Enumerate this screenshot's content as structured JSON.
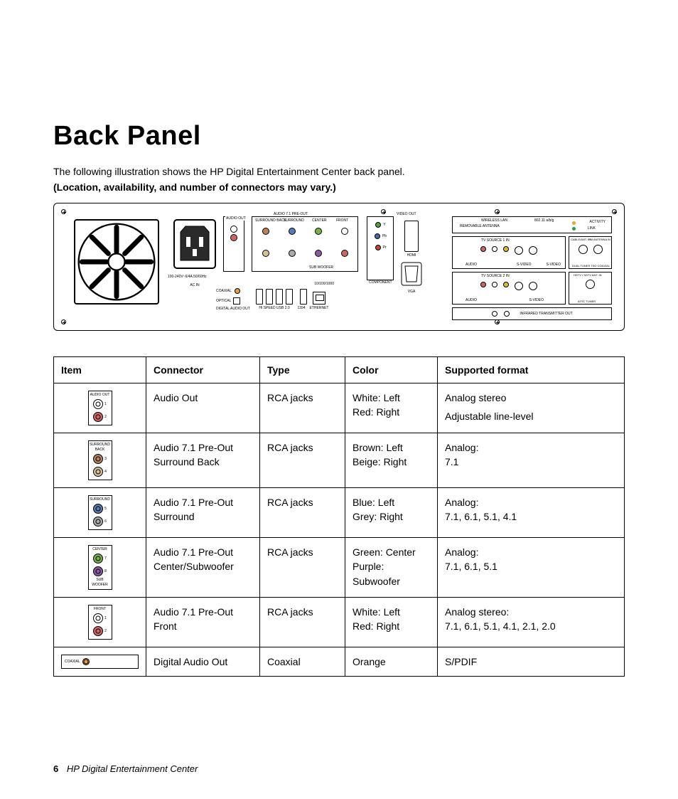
{
  "page": {
    "title": "Back Panel",
    "intro": "The following illustration shows the HP Digital Entertainment Center back panel.",
    "note": "(Location, availability, and number of connectors may vary.)",
    "page_number": "6",
    "footer_title": "HP Digital Entertainment Center"
  },
  "panel_labels": {
    "audio_out": "AUDIO OUT",
    "audio_71_preout": "AUDIO 7.1 PRE-OUT",
    "surround_back": "SURROUND BACK",
    "surround": "SURROUND",
    "center": "CENTER",
    "front": "FRONT",
    "sub_woofer": "SUB WOOFER",
    "ac_in": "AC IN",
    "ac_spec": "100-240V~6/4A  50/60Hz",
    "coaxial": "COAXIAL",
    "optical": "OPTICAL",
    "digital_audio_out": "DIGITAL AUDIO OUT",
    "hi_speed_usb": "HI SPEED USB 2.0",
    "ieee1394": "1394",
    "ethernet": "ETHERNET",
    "ethernet_speed": "10/100/1000",
    "video_out": "VIDEO OUT",
    "component": "COMPONENT",
    "hdmi": "HDMI",
    "vga": "VGA",
    "y": "Y",
    "pb": "Pb",
    "pr": "Pr",
    "wireless_lan": "WIRELESS LAN",
    "wifi_std": "802.11 a/b/g",
    "removable_antenna": "REMOVABLE ANTENNA",
    "activity": "ACTIVITY",
    "link": "LINK",
    "tv_source_1": "TV SOURCE  1   IN",
    "tv_source_2": "TV SOURCE  2  IN",
    "audio": "AUDIO",
    "svideo": "S-VIDEO",
    "cable_ant_in": "CABLE/ANT. IN",
    "fm_antenna_in": "FM ANTENNA IN",
    "dual_tuner": "DUAL TUNER",
    "tso_coaxial": "TSO COAXIAL",
    "hdtv_sdtv": "HDTV / SDTV ANT. IN",
    "atsc_tuner": "ATSC TUNER",
    "ir_out": "INFRARED TRANSMITTER OUT"
  },
  "table": {
    "headers": {
      "item": "Item",
      "connector": "Connector",
      "type": "Type",
      "color": "Color",
      "format": "Supported format"
    },
    "rows": [
      {
        "icon": {
          "labels": [
            "AUDIO OUT"
          ],
          "jacks": [
            {
              "c": "#fff"
            },
            {
              "c": "#c66"
            }
          ],
          "numbers": [
            "1",
            "2"
          ]
        },
        "connector": "Audio Out",
        "type": "RCA jacks",
        "color": "White: Left\nRed: Right",
        "format": "Analog stereo\n\nAdjustable line-level"
      },
      {
        "icon": {
          "labels": [
            "SURROUND",
            "BACK"
          ],
          "jacks": [
            {
              "c": "#b5825a"
            },
            {
              "c": "#d4c19b"
            }
          ],
          "numbers": [
            "3",
            "4"
          ]
        },
        "connector": "Audio 7.1 Pre-Out Surround Back",
        "type": "RCA jacks",
        "color": "Brown: Left\nBeige: Right",
        "format": "Analog:\n7.1"
      },
      {
        "icon": {
          "labels": [
            "SURROUND"
          ],
          "jacks": [
            {
              "c": "#5a7ab0"
            },
            {
              "c": "#aaa"
            }
          ],
          "numbers": [
            "5",
            "6"
          ]
        },
        "connector": "Audio 7.1 Pre-Out Surround",
        "type": "RCA jacks",
        "color": "Blue: Left\nGrey: Right",
        "format": "Analog:\n7.1, 6.1, 5.1, 4.1"
      },
      {
        "icon": {
          "labels": [
            "CENTER"
          ],
          "jacks": [
            {
              "c": "#7fb048"
            },
            {
              "c": "#8a5aa0"
            }
          ],
          "labels2": [
            "SUB",
            "WOOFER"
          ],
          "numbers": [
            "7",
            "8"
          ]
        },
        "connector": "Audio 7.1 Pre-Out Center/Subwoofer",
        "type": "RCA jacks",
        "color": "Green: Center\nPurple: Subwoofer",
        "format": "Analog:\n7.1, 6.1, 5.1"
      },
      {
        "icon": {
          "labels": [
            "FRONT"
          ],
          "jacks": [
            {
              "c": "#fff"
            },
            {
              "c": "#c66"
            }
          ],
          "numbers": [
            "1",
            "2"
          ]
        },
        "connector": "Audio 7.1 Pre-Out Front",
        "type": "RCA jacks",
        "color": "White: Left\nRed: Right",
        "format": "Analog stereo:\n7.1, 6.1, 5.1, 4.1, 2.1, 2.0"
      },
      {
        "icon": {
          "horizontal": true,
          "labels": [
            "COAXIAL"
          ],
          "jacks": [
            {
              "c": "#e5a23a"
            }
          ]
        },
        "connector": "Digital Audio Out",
        "type": "Coaxial",
        "color": "Orange",
        "format": "S/PDIF"
      }
    ]
  },
  "colors": {
    "green_led": "#2a9d3a",
    "orange_led": "#e5a23a",
    "red": "#cc4433",
    "white": "#ffffff",
    "yellow": "#d8c02a",
    "green_y": "#5aa048",
    "blue_pb": "#4a6aa8",
    "red_pr": "#c04a3a"
  }
}
